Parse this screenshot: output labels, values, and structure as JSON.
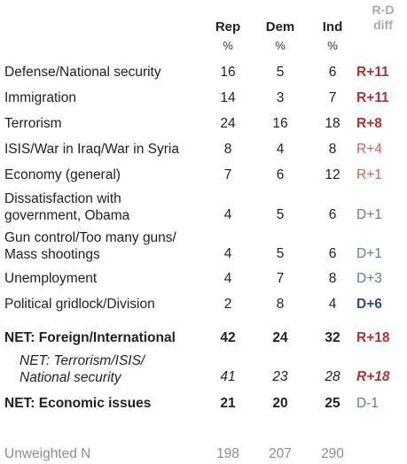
{
  "header": {
    "rep": "Rep",
    "dem": "Dem",
    "ind": "Ind",
    "unit": "%",
    "rd_line1": "R-D",
    "rd_line2": "diff"
  },
  "colors": {
    "rep_strong": "#b7322c",
    "rep_light": "#d35f53",
    "dem_light": "#5b7e9c",
    "dem_strong": "#2f5272",
    "muted": "#8e8e8e"
  },
  "rows": [
    {
      "label": "Defense/National security",
      "rep": "16",
      "dem": "5",
      "ind": "6",
      "diff": "R+11"
    },
    {
      "label": "Immigration",
      "rep": "14",
      "dem": "3",
      "ind": "7",
      "diff": "R+11"
    },
    {
      "label": "Terrorism",
      "rep": "24",
      "dem": "16",
      "ind": "18",
      "diff": "R+8"
    },
    {
      "label": "ISIS/War in Iraq/War in Syria",
      "rep": "8",
      "dem": "4",
      "ind": "8",
      "diff": "R+4"
    },
    {
      "label": "Economy (general)",
      "rep": "7",
      "dem": "6",
      "ind": "12",
      "diff": "R+1"
    },
    {
      "label_line1": "Dissatisfaction with",
      "label_line2": "government, Obama",
      "rep": "4",
      "dem": "5",
      "ind": "6",
      "diff": "D+1"
    },
    {
      "label_line1": "Gun control/Too many guns/",
      "label_line2": "Mass shootings",
      "rep": "4",
      "dem": "5",
      "ind": "6",
      "diff": "D+1"
    },
    {
      "label": "Unemployment",
      "rep": "4",
      "dem": "7",
      "ind": "8",
      "diff": "D+3"
    },
    {
      "label": "Political gridlock/Division",
      "rep": "2",
      "dem": "8",
      "ind": "4",
      "diff": "D+6"
    },
    {
      "label": "NET: Foreign/International",
      "rep": "42",
      "dem": "24",
      "ind": "32",
      "diff": "R+18"
    },
    {
      "label_line1": "NET: Terrorism/ISIS/",
      "label_line2": "National security",
      "rep": "41",
      "dem": "23",
      "ind": "28",
      "diff": "R+18"
    },
    {
      "label": "NET: Economic issues",
      "rep": "21",
      "dem": "20",
      "ind": "25",
      "diff": "D-1"
    },
    {
      "label": "Unweighted N",
      "rep": "198",
      "dem": "207",
      "ind": "290"
    }
  ]
}
